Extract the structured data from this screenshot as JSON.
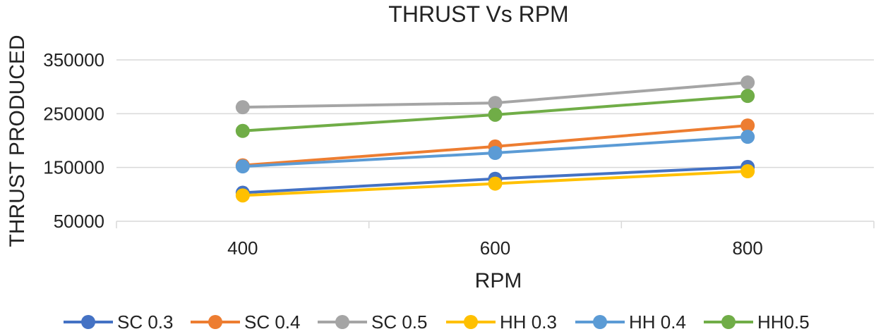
{
  "chart_data": {
    "type": "line",
    "title": "THRUST Vs RPM",
    "xlabel": "RPM",
    "ylabel": "THRUST PRODUCED",
    "categories": [
      "400",
      "600",
      "800"
    ],
    "yticks": [
      50000,
      150000,
      250000,
      350000
    ],
    "ytick_labels": [
      "50000",
      "150000",
      "250000",
      "350000"
    ],
    "ylim": [
      50000,
      350000
    ],
    "grid": true,
    "legend_position": "bottom",
    "series": [
      {
        "name": "SC 0.3",
        "color": "#4472c4",
        "values": [
          103000,
          129000,
          151000
        ]
      },
      {
        "name": "SC 0.4",
        "color": "#ed7d31",
        "values": [
          154000,
          189000,
          228000
        ]
      },
      {
        "name": "SC 0.5",
        "color": "#a5a5a5",
        "values": [
          262000,
          270000,
          308000
        ]
      },
      {
        "name": "HH 0.3",
        "color": "#ffc000",
        "values": [
          98000,
          120000,
          143000
        ]
      },
      {
        "name": "HH 0.4",
        "color": "#5b9bd5",
        "values": [
          152000,
          177000,
          207000
        ]
      },
      {
        "name": "HH0.5",
        "color": "#70ad47",
        "values": [
          218000,
          248000,
          283000
        ]
      }
    ]
  }
}
